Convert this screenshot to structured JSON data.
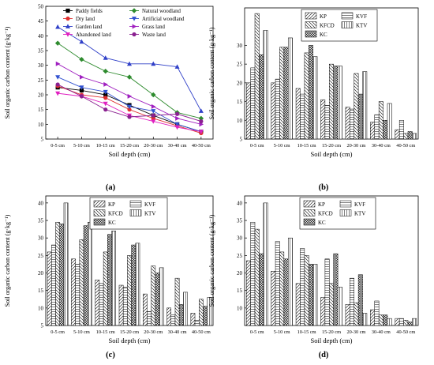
{
  "panels": [
    {
      "caption": "(a)",
      "chart_data": {
        "type": "line",
        "xlabel": "Soil depth (cm)",
        "ylabel": "Soil organic carbon content (g·kg⁻¹)",
        "ylim": [
          5,
          50
        ],
        "yticks": [
          5,
          10,
          15,
          20,
          25,
          30,
          35,
          40,
          45,
          50
        ],
        "categories": [
          "0-5 cm",
          "5-10 cm",
          "10-15 cm",
          "15-20 cm",
          "20-30 cm",
          "30-40 cm",
          "40-50 cm"
        ],
        "legend_columns": 2,
        "series": [
          {
            "name": "Paddy fields",
            "color": "#000000",
            "marker": "square",
            "values": [
              22.5,
              21.5,
              20.0,
              16.5,
              13.0,
              10.0,
              7.5
            ]
          },
          {
            "name": "Natural woodland",
            "color": "#2e8b2e",
            "marker": "diamond",
            "values": [
              37.5,
              32.0,
              28.0,
              26.0,
              20.0,
              14.0,
              12.0
            ]
          },
          {
            "name": "Dry land",
            "color": "#e03030",
            "marker": "circle",
            "values": [
              23.0,
              20.0,
              19.0,
              15.0,
              12.0,
              9.5,
              7.0
            ]
          },
          {
            "name": "Artificial woodland",
            "color": "#3050d0",
            "marker": "triangle-down",
            "values": [
              26.0,
              22.5,
              21.0,
              16.0,
              14.5,
              10.0,
              7.5
            ]
          },
          {
            "name": "Garden land",
            "color": "#3040c8",
            "marker": "triangle-up",
            "values": [
              43.0,
              38.0,
              32.5,
              30.5,
              30.5,
              29.5,
              14.5
            ]
          },
          {
            "name": "Grass land",
            "color": "#a020c0",
            "marker": "triangle-right",
            "values": [
              30.5,
              26.0,
              23.5,
              19.5,
              16.0,
              12.0,
              10.0
            ]
          },
          {
            "name": "Abandoned land",
            "color": "#e020c0",
            "marker": "triangle-down",
            "values": [
              20.5,
              19.5,
              17.0,
              13.0,
              11.0,
              9.0,
              7.5
            ]
          },
          {
            "name": "Waste land",
            "color": "#8a2090",
            "marker": "circle",
            "values": [
              23.5,
              19.5,
              15.0,
              12.5,
              13.0,
              13.5,
              11.0
            ]
          }
        ]
      }
    },
    {
      "caption": "(b)",
      "chart_data": {
        "type": "bar",
        "xlabel": "Soil depth (cm)",
        "ylabel": "Soil organic carbon content (g·kg⁻¹)",
        "ylim": [
          5,
          40
        ],
        "yticks": [
          5,
          10,
          15,
          20,
          25,
          30
        ],
        "categories": [
          "0-5 cm",
          "5-10 cm",
          "10-15 cm",
          "15-20 cm",
          "20-30 cm",
          "30-40 cm",
          "40-50 cm"
        ],
        "series": [
          {
            "name": "KP",
            "pattern": "diag-fwd",
            "values": [
              20.0,
              20.0,
              18.5,
              15.5,
              13.5,
              9.5,
              7.5
            ]
          },
          {
            "name": "KVF",
            "pattern": "horiz",
            "values": [
              24.0,
              21.0,
              17.0,
              14.0,
              13.0,
              11.5,
              10.0
            ]
          },
          {
            "name": "KFCD",
            "pattern": "diag-back",
            "values": [
              38.5,
              29.5,
              28.0,
              25.0,
              22.5,
              15.0,
              6.5
            ]
          },
          {
            "name": "KC",
            "pattern": "cross",
            "values": [
              27.5,
              29.5,
              30.0,
              24.5,
              17.0,
              10.0,
              7.0
            ]
          },
          {
            "name": "KTV",
            "pattern": "vert",
            "values": [
              34.0,
              32.0,
              27.0,
              24.5,
              23.0,
              14.5,
              6.5
            ]
          }
        ]
      }
    },
    {
      "caption": "(c)",
      "chart_data": {
        "type": "bar",
        "xlabel": "Soil depth (cm)",
        "ylabel": "Soil organic carbon content (g·kg⁻¹)",
        "ylim": [
          5,
          42
        ],
        "yticks": [
          5,
          10,
          15,
          20,
          25,
          30,
          35,
          40
        ],
        "categories": [
          "0-5 cm",
          "5-10 cm",
          "10-15 cm",
          "15-20 cm",
          "20-30 cm",
          "30-40 cm",
          "40-50 cm"
        ],
        "series": [
          {
            "name": "KP",
            "pattern": "diag-fwd",
            "values": [
              26.0,
              24.0,
              18.0,
              16.5,
              14.0,
              10.0,
              8.5
            ]
          },
          {
            "name": "KVF",
            "pattern": "horiz",
            "values": [
              28.0,
              22.5,
              17.0,
              16.0,
              9.0,
              8.0,
              6.5
            ]
          },
          {
            "name": "KFCD",
            "pattern": "diag-back",
            "values": [
              34.5,
              29.5,
              26.0,
              25.0,
              22.0,
              18.5,
              12.5
            ]
          },
          {
            "name": "KC",
            "pattern": "cross",
            "values": [
              34.0,
              33.5,
              31.0,
              28.0,
              20.0,
              11.0,
              10.5
            ]
          },
          {
            "name": "KTV",
            "pattern": "vert",
            "values": [
              40.0,
              34.5,
              32.0,
              28.5,
              21.5,
              14.5,
              13.0
            ]
          }
        ]
      }
    },
    {
      "caption": "(d)",
      "chart_data": {
        "type": "bar",
        "xlabel": "Soil depth (cm)",
        "ylabel": "Soil organic carbon content (g·kg⁻¹)",
        "ylim": [
          5,
          42
        ],
        "yticks": [
          10,
          15,
          20,
          25,
          30,
          35,
          40
        ],
        "categories": [
          "0-5 cm",
          "5-10 cm",
          "10-15 cm",
          "15-20 cm",
          "20-30 cm",
          "30-40 cm",
          "40-50 cm"
        ],
        "series": [
          {
            "name": "KP",
            "pattern": "diag-fwd",
            "values": [
              23.5,
              20.5,
              17.0,
              13.0,
              11.0,
              9.5,
              7.0
            ]
          },
          {
            "name": "KVF",
            "pattern": "horiz",
            "values": [
              34.5,
              29.0,
              27.0,
              24.0,
              18.5,
              12.0,
              7.0
            ]
          },
          {
            "name": "KFCD",
            "pattern": "diag-back",
            "values": [
              32.5,
              26.0,
              25.0,
              17.0,
              11.5,
              8.0,
              6.5
            ]
          },
          {
            "name": "KC",
            "pattern": "cross",
            "values": [
              25.5,
              24.0,
              22.5,
              25.5,
              19.5,
              8.0,
              6.0
            ]
          },
          {
            "name": "KTV",
            "pattern": "vert",
            "values": [
              40.0,
              30.0,
              22.5,
              16.0,
              8.5,
              7.0,
              7.0
            ]
          }
        ]
      }
    }
  ]
}
